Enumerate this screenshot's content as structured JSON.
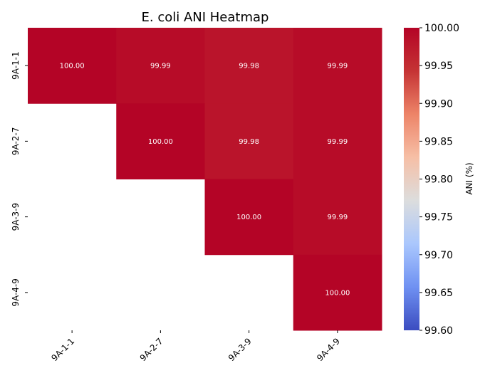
{
  "chart_data": {
    "type": "heatmap",
    "title": "E. coli ANI Heatmap",
    "x_categories": [
      "9A-1-1",
      "9A-2-7",
      "9A-3-9",
      "9A-4-9"
    ],
    "y_categories": [
      "9A-1-1",
      "9A-2-7",
      "9A-3-9",
      "9A-4-9"
    ],
    "matrix": [
      [
        100.0,
        99.99,
        99.98,
        99.99
      ],
      [
        null,
        100.0,
        99.98,
        99.99
      ],
      [
        null,
        null,
        100.0,
        99.99
      ],
      [
        null,
        null,
        null,
        100.0
      ]
    ],
    "cell_labels": [
      [
        "100.00",
        "99.99",
        "99.98",
        "99.99"
      ],
      [
        "",
        "100.00",
        "99.98",
        "99.99"
      ],
      [
        "",
        "",
        "100.00",
        "99.99"
      ],
      [
        "",
        "",
        "",
        "100.00"
      ]
    ],
    "colorbar": {
      "label": "ANI (%)",
      "range": [
        99.6,
        100.0
      ],
      "ticks": [
        "100.00",
        "99.95",
        "99.90",
        "99.85",
        "99.80",
        "99.75",
        "99.70",
        "99.65",
        "99.60"
      ],
      "colormap": "coolwarm",
      "colors": [
        "#3b4cc0",
        "#6f91f2",
        "#aac7fd",
        "#dcdddd",
        "#f6bfa6",
        "#ed8468",
        "#c53334",
        "#b40426"
      ]
    }
  }
}
